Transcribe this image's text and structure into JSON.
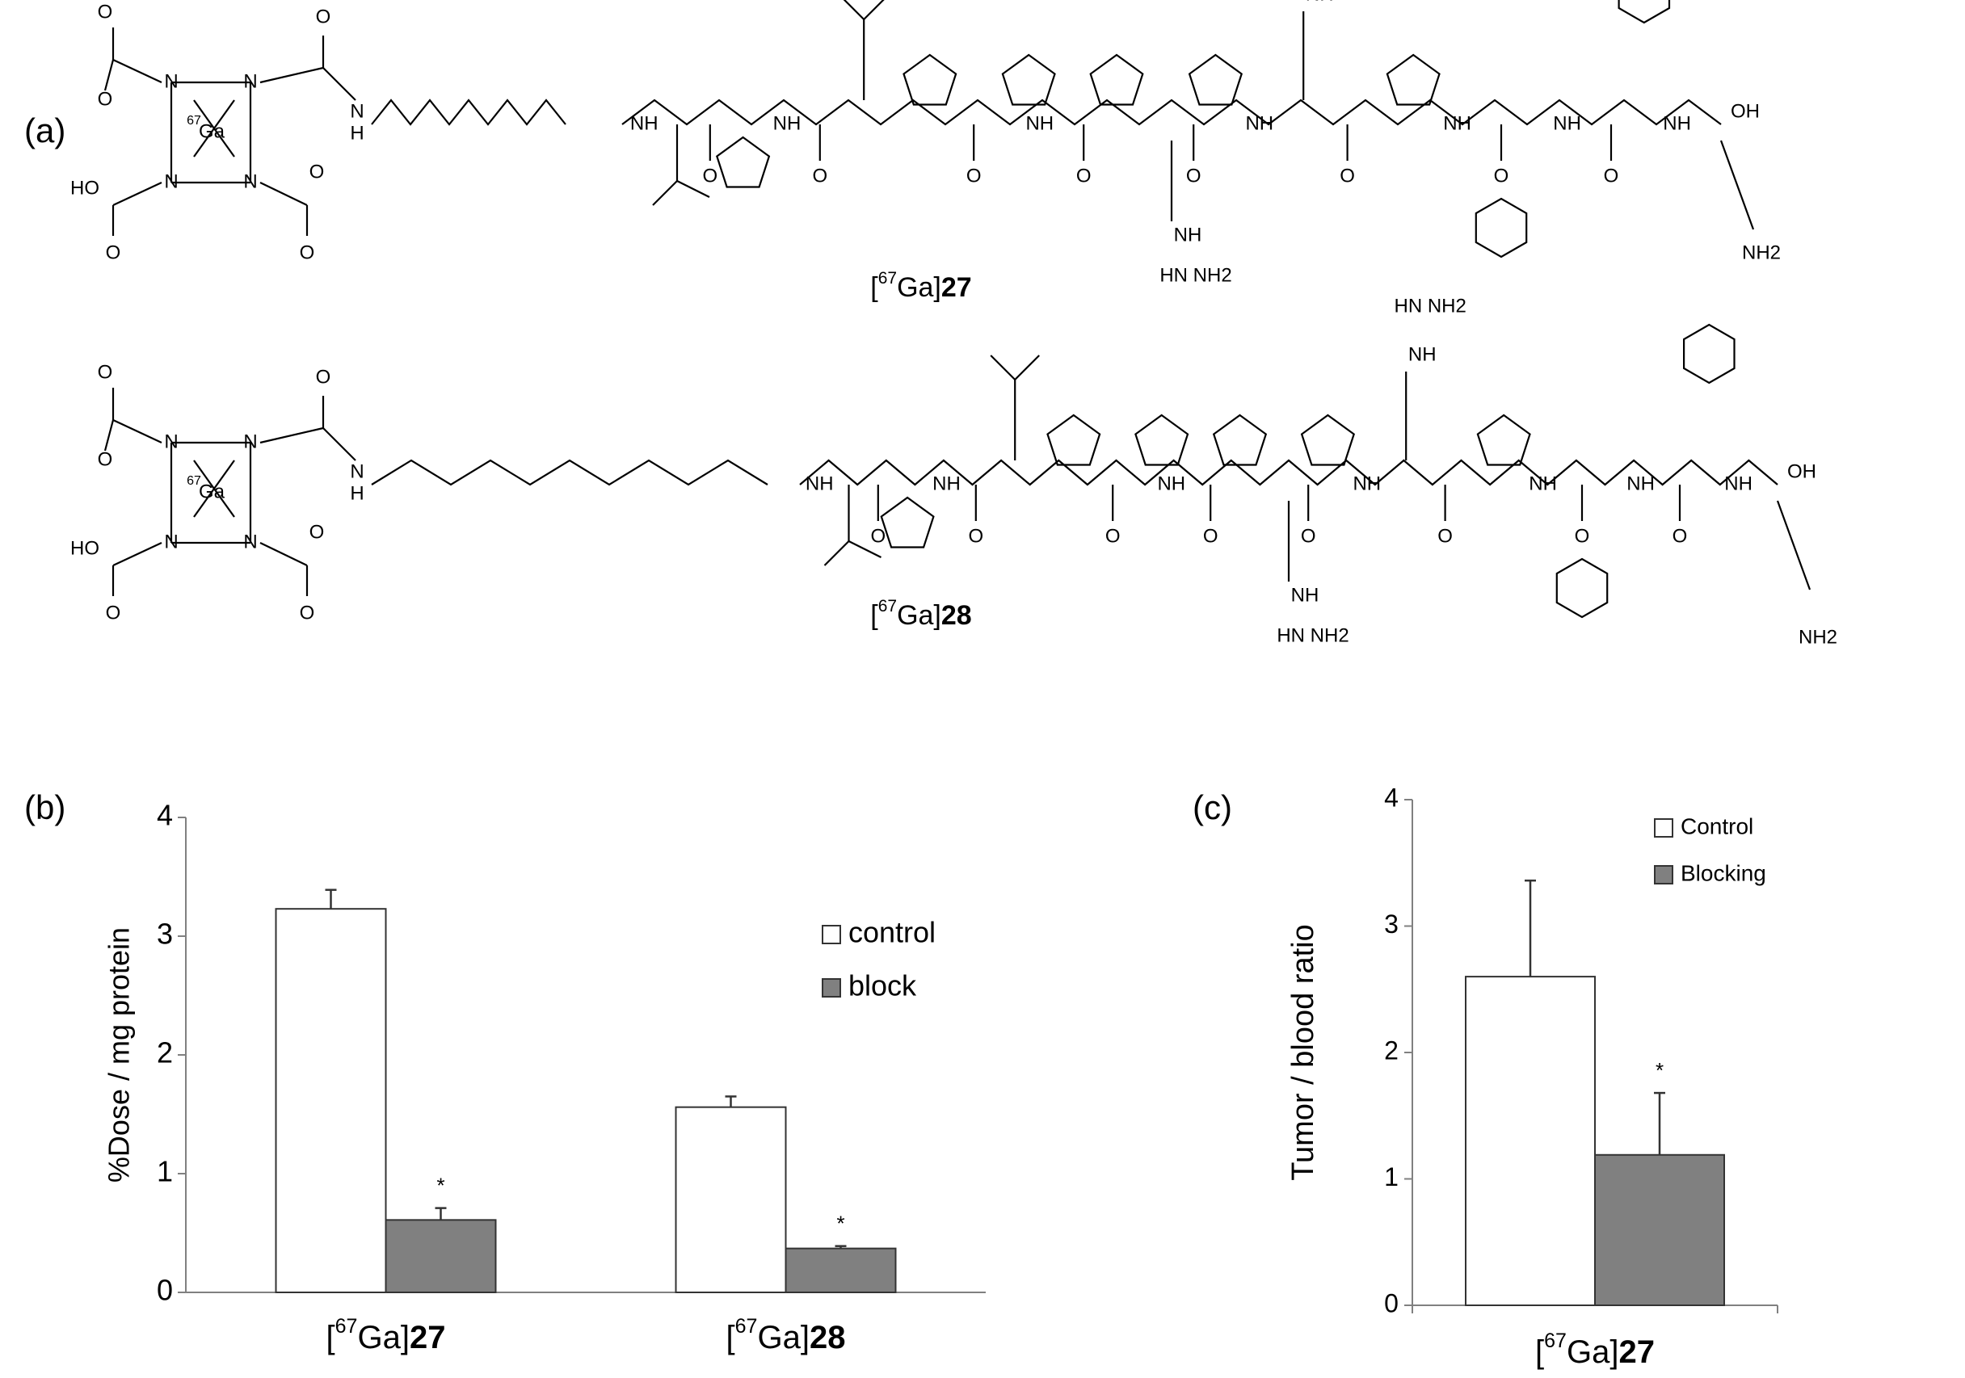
{
  "panels": {
    "a": "(a)",
    "b": "(b)",
    "c": "(c)"
  },
  "structures": [
    {
      "prefix": "[",
      "sup": "67",
      "mid": "Ga]",
      "num": "27"
    },
    {
      "prefix": "[",
      "sup": "67",
      "mid": "Ga]",
      "num": "28"
    }
  ],
  "atoms": {
    "N": "N",
    "O": "O",
    "NH": "NH",
    "HO": "HO",
    "OH": "OH",
    "Ga": "Ga",
    "iso": "67",
    "HN": "HN",
    "NH2": "NH2",
    "HN_NH2": "HN   NH2"
  },
  "chart_data": [
    {
      "type": "bar",
      "panel": "b",
      "ylabel": "%Dose / mg protein",
      "ylim": [
        0,
        4
      ],
      "yticks": [
        0,
        1,
        2,
        3,
        4
      ],
      "categories": [
        {
          "prefix": "[",
          "sup": "67",
          "mid": "Ga]",
          "num": "27"
        },
        {
          "prefix": "[",
          "sup": "67",
          "mid": "Ga]",
          "num": "28"
        }
      ],
      "series": [
        {
          "name": "control",
          "color": "#ffffff",
          "values": [
            3.23,
            1.56
          ],
          "errors": [
            0.16,
            0.09
          ],
          "sig": [
            "",
            ""
          ]
        },
        {
          "name": "block",
          "color": "#808080",
          "values": [
            0.61,
            0.37
          ],
          "errors": [
            0.1,
            0.02
          ],
          "sig": [
            "*",
            "*"
          ]
        }
      ],
      "legend": "right"
    },
    {
      "type": "bar",
      "panel": "c",
      "ylabel": "Tumor / blood ratio",
      "ylim": [
        0,
        4
      ],
      "yticks": [
        0,
        1,
        2,
        3,
        4
      ],
      "categories": [
        {
          "prefix": "[",
          "sup": "67",
          "mid": "Ga]",
          "num": "27"
        }
      ],
      "series": [
        {
          "name": "Control",
          "color": "#ffffff",
          "values": [
            2.6
          ],
          "errors": [
            0.76
          ],
          "sig": [
            ""
          ]
        },
        {
          "name": "Blocking",
          "color": "#808080",
          "values": [
            1.19
          ],
          "errors": [
            0.49
          ],
          "sig": [
            "*"
          ]
        }
      ],
      "legend": "top-right"
    }
  ]
}
